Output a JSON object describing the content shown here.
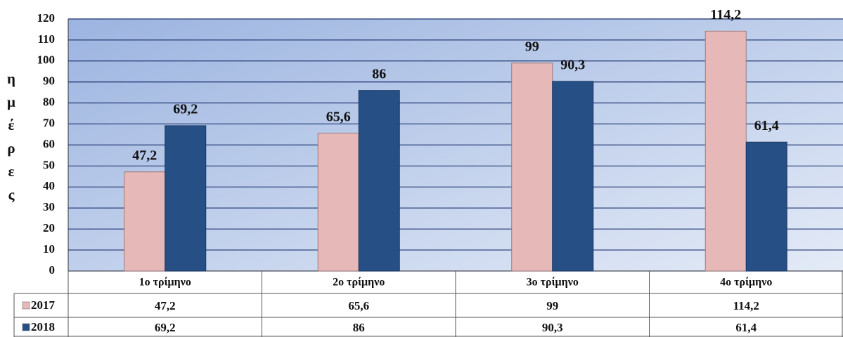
{
  "chart_data": {
    "type": "bar",
    "y_label": "ημέρες",
    "categories": [
      "1ο τρίμηνο",
      "2ο τρίμηνο",
      "3ο τρίμηνο",
      "4ο τρίμηνο"
    ],
    "series": [
      {
        "name": "2017",
        "color": "#e6b9b8",
        "values": [
          47.2,
          65.6,
          99,
          114.2
        ],
        "value_labels": [
          "47,2",
          "65,6",
          "99",
          "114,2"
        ]
      },
      {
        "name": "2018",
        "color": "#264f86",
        "values": [
          69.2,
          86,
          90.3,
          61.4
        ],
        "value_labels": [
          "69,2",
          "86",
          "90,3",
          "61,4"
        ]
      }
    ],
    "ylim": [
      0,
      120
    ],
    "yticks": [
      0,
      10,
      20,
      30,
      40,
      50,
      60,
      70,
      80,
      90,
      100,
      110,
      120
    ],
    "grid": true
  }
}
